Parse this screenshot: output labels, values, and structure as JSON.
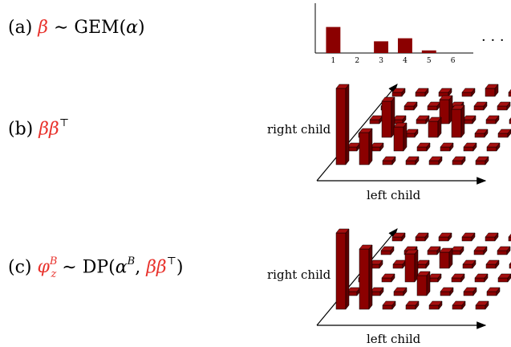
{
  "rows": {
    "a": {
      "prefix": "(a) ",
      "red": "β",
      "rest": " ∼ GEM(",
      "param": "α",
      "close": ")"
    },
    "b": {
      "prefix": "(b) ",
      "red": "ββ",
      "sup": "⊤"
    },
    "c": {
      "prefix": "(c) ",
      "red_main": "φ",
      "red_sub": "z",
      "red_sup": "B",
      "mid": " ∼ DP(",
      "alpha": "α",
      "alpha_sup": "B",
      "comma": ", ",
      "red_bb": "ββ",
      "bb_sup": "⊤",
      "close": ")"
    }
  },
  "bar_chart": {
    "ticks": [
      "1",
      "2",
      "3",
      "4",
      "5",
      "6"
    ],
    "values": [
      0.6,
      0,
      0.27,
      0.34,
      0.06,
      0
    ],
    "ellipsis": "· · ·",
    "bar_color": "#8b0000"
  },
  "grid_b": {
    "right_child_label": "right child",
    "left_child_label": "left child",
    "heights": [
      [
        0.95,
        0.4,
        0.05,
        0.05,
        0.05,
        0.05,
        0.05
      ],
      [
        0.05,
        0.05,
        0.3,
        0.05,
        0.05,
        0.05,
        0.05
      ],
      [
        0.05,
        0.45,
        0.05,
        0.2,
        0.35,
        0.05,
        0.05
      ],
      [
        0.05,
        0.05,
        0.05,
        0.3,
        0.05,
        0.05,
        0.05
      ],
      [
        0.05,
        0.05,
        0.05,
        0.05,
        0.05,
        0.05,
        0.05
      ],
      [
        0.05,
        0.05,
        0.05,
        0.05,
        0.1,
        0.05,
        0.05
      ]
    ]
  },
  "grid_c": {
    "right_child_label": "right child",
    "left_child_label": "left child",
    "heights": [
      [
        0.95,
        0.75,
        0.05,
        0.05,
        0.05,
        0.05,
        0.05
      ],
      [
        0.05,
        0.05,
        0.05,
        0.25,
        0.05,
        0.05,
        0.05
      ],
      [
        0.05,
        0.05,
        0.35,
        0.05,
        0.05,
        0.05,
        0.05
      ],
      [
        0.05,
        0.05,
        0.05,
        0.2,
        0.05,
        0.05,
        0.05
      ],
      [
        0.05,
        0.05,
        0.05,
        0.05,
        0.05,
        0.05,
        0.05
      ],
      [
        0.05,
        0.05,
        0.05,
        0.05,
        0.05,
        0.05,
        0.05
      ]
    ]
  }
}
